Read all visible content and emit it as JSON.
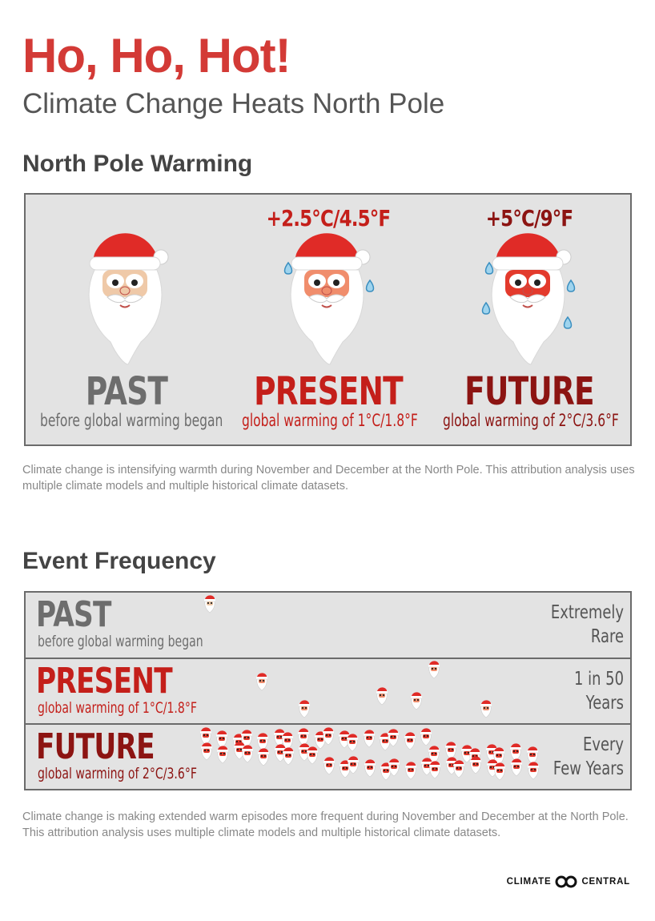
{
  "header": {
    "title": "Ho, Ho, Hot!",
    "subtitle": "Climate Change Heats North Pole"
  },
  "warming": {
    "heading": "North Pole Warming",
    "columns": [
      {
        "delta": "",
        "era": "PAST",
        "description": "before global warming began",
        "color": "#6d6d6d",
        "face": "#efc9a8",
        "sweat": 0
      },
      {
        "delta": "+2.5°C/4.5°F",
        "era": "PRESENT",
        "description": "global warming of 1°C/1.8°F",
        "color": "#c41f1a",
        "face": "#f08d6c",
        "sweat": 2
      },
      {
        "delta": "+5°C/9°F",
        "era": "FUTURE",
        "description": "global warming of 2°C/3.6°F",
        "color": "#8c1412",
        "face": "#e33a2c",
        "sweat": 4
      }
    ],
    "note": "Climate change is intensifying warmth during November and December at the North Pole. This attribution analysis uses multiple climate models and multiple historical climate datasets."
  },
  "frequency": {
    "heading": "Event Frequency",
    "rows": [
      {
        "era": "PAST",
        "description": "before global warming began",
        "frequency_line1": "Extremely",
        "frequency_line2": "Rare",
        "color": "#6d6d6d",
        "santa_count": 1
      },
      {
        "era": "PRESENT",
        "description": "global warming of 1°C/1.8°F",
        "frequency_line1": "1 in 50",
        "frequency_line2": "Years",
        "color": "#c41f1a",
        "santa_count": 6
      },
      {
        "era": "FUTURE",
        "description": "global warming of 2°C/3.6°F",
        "frequency_line1": "Every",
        "frequency_line2": "Few Years",
        "color": "#8c1412",
        "santa_count": 50
      }
    ],
    "note": "Climate change is making extended warm episodes more frequent during November and December at the North Pole. This attribution analysis uses multiple climate models and multiple historical climate datasets."
  },
  "logo": {
    "left_text": "CLIMATE",
    "right_text": "CENTRAL"
  },
  "colors": {
    "accent": "#d33a36",
    "panel": "#e3e3e3",
    "border": "#6b6b6b"
  }
}
